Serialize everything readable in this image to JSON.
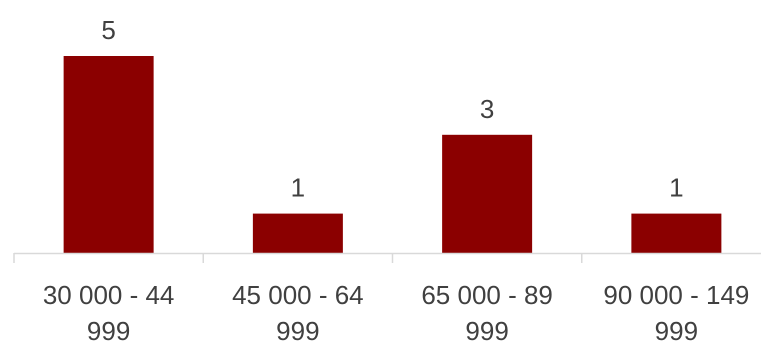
{
  "chart_data": {
    "type": "bar",
    "categories": [
      [
        "30 000 - 44",
        "999"
      ],
      [
        "45 000 - 64",
        "999"
      ],
      [
        "65 000 - 89",
        "999"
      ],
      [
        "90 000 - 149",
        "999"
      ]
    ],
    "values": [
      5,
      1,
      3,
      1
    ],
    "data_labels": [
      "5",
      "1",
      "3",
      "1"
    ],
    "title": "",
    "xlabel": "",
    "ylabel": "",
    "ylim": [
      0,
      5
    ],
    "grid": false,
    "legend": "none",
    "bar_color": "#8B0000",
    "axis_color": "#D9D9D9",
    "text_color": "#404040"
  }
}
